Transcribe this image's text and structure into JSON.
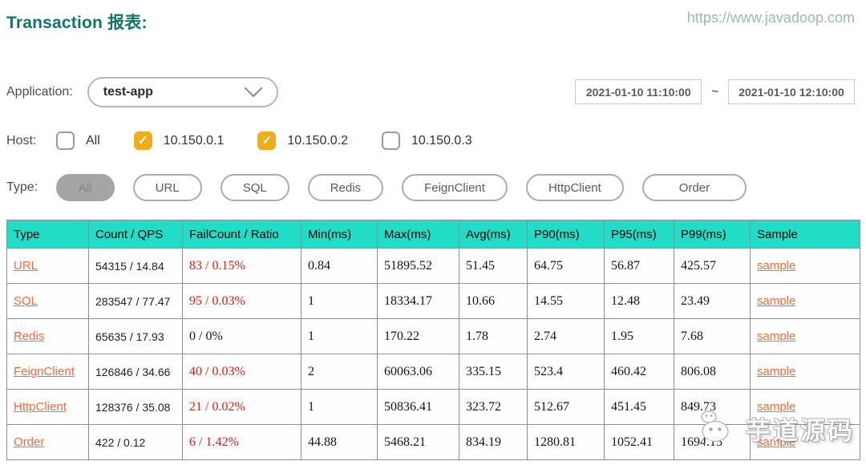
{
  "header": {
    "title": "Transaction 报表:",
    "site": "https://www.javadoop.com"
  },
  "filters": {
    "application": {
      "label": "Application:",
      "value": "test-app"
    },
    "date_range": {
      "start": "2021-01-10 11:10:00",
      "separator": "~",
      "end": "2021-01-10 12:10:00"
    },
    "host": {
      "label": "Host:",
      "options": [
        {
          "label": "All",
          "checked": false
        },
        {
          "label": "10.150.0.1",
          "checked": true
        },
        {
          "label": "10.150.0.2",
          "checked": true
        },
        {
          "label": "10.150.0.3",
          "checked": false
        }
      ]
    },
    "type": {
      "label": "Type:",
      "options": [
        {
          "label": "All",
          "active": true
        },
        {
          "label": "URL",
          "active": false
        },
        {
          "label": "SQL",
          "active": false
        },
        {
          "label": "Redis",
          "active": false
        },
        {
          "label": "FeignClient",
          "active": false
        },
        {
          "label": "HttpClient",
          "active": false
        },
        {
          "label": "Order",
          "active": false
        }
      ]
    }
  },
  "table": {
    "columns": [
      "Type",
      "Count / QPS",
      "FailCount / Ratio",
      "Min(ms)",
      "Max(ms)",
      "Avg(ms)",
      "P90(ms)",
      "P95(ms)",
      "P99(ms)",
      "Sample"
    ],
    "rows": [
      {
        "type": "URL",
        "count_qps": "54315 / 14.84",
        "fail": "83 / 0.15%",
        "fail_red": true,
        "min": "0.84",
        "max": "51895.52",
        "avg": "51.45",
        "p90": "64.75",
        "p95": "56.87",
        "p99": "425.57",
        "sample": "sample"
      },
      {
        "type": "SQL",
        "count_qps": "283547 / 77.47",
        "fail": "95 / 0.03%",
        "fail_red": true,
        "min": "1",
        "max": "18334.17",
        "avg": "10.66",
        "p90": "14.55",
        "p95": "12.48",
        "p99": "23.49",
        "sample": "sample"
      },
      {
        "type": "Redis",
        "count_qps": "65635 / 17.93",
        "fail": "0 / 0%",
        "fail_red": false,
        "min": "1",
        "max": "170.22",
        "avg": "1.78",
        "p90": "2.74",
        "p95": "1.95",
        "p99": "7.68",
        "sample": "sample"
      },
      {
        "type": "FeignClient",
        "count_qps": "126846 / 34.66",
        "fail": "40 / 0.03%",
        "fail_red": true,
        "min": "2",
        "max": "60063.06",
        "avg": "335.15",
        "p90": "523.4",
        "p95": "460.42",
        "p99": "806.08",
        "sample": "sample"
      },
      {
        "type": "HttpClient",
        "count_qps": "128376 / 35.08",
        "fail": "21 / 0.02%",
        "fail_red": true,
        "min": "1",
        "max": "50836.41",
        "avg": "323.72",
        "p90": "512.67",
        "p95": "451.45",
        "p99": "849.73",
        "sample": "sample"
      },
      {
        "type": "Order",
        "count_qps": "422 / 0.12",
        "fail": "6 / 1.42%",
        "fail_red": true,
        "min": "44.88",
        "max": "5468.21",
        "avg": "834.19",
        "p90": "1280.81",
        "p95": "1052.41",
        "p99": "1694.15",
        "sample": "sample"
      }
    ]
  },
  "icons": {
    "check": "✓"
  },
  "watermark": {
    "text": "芋道源码"
  },
  "colors": {
    "title": "#11756B",
    "site_link": "#9BB9B3",
    "table_header": "#21DCC6",
    "link_orange": "#FB6A35",
    "fail_red": "#e8150a",
    "checkbox_checked": "#F0AD1B"
  }
}
